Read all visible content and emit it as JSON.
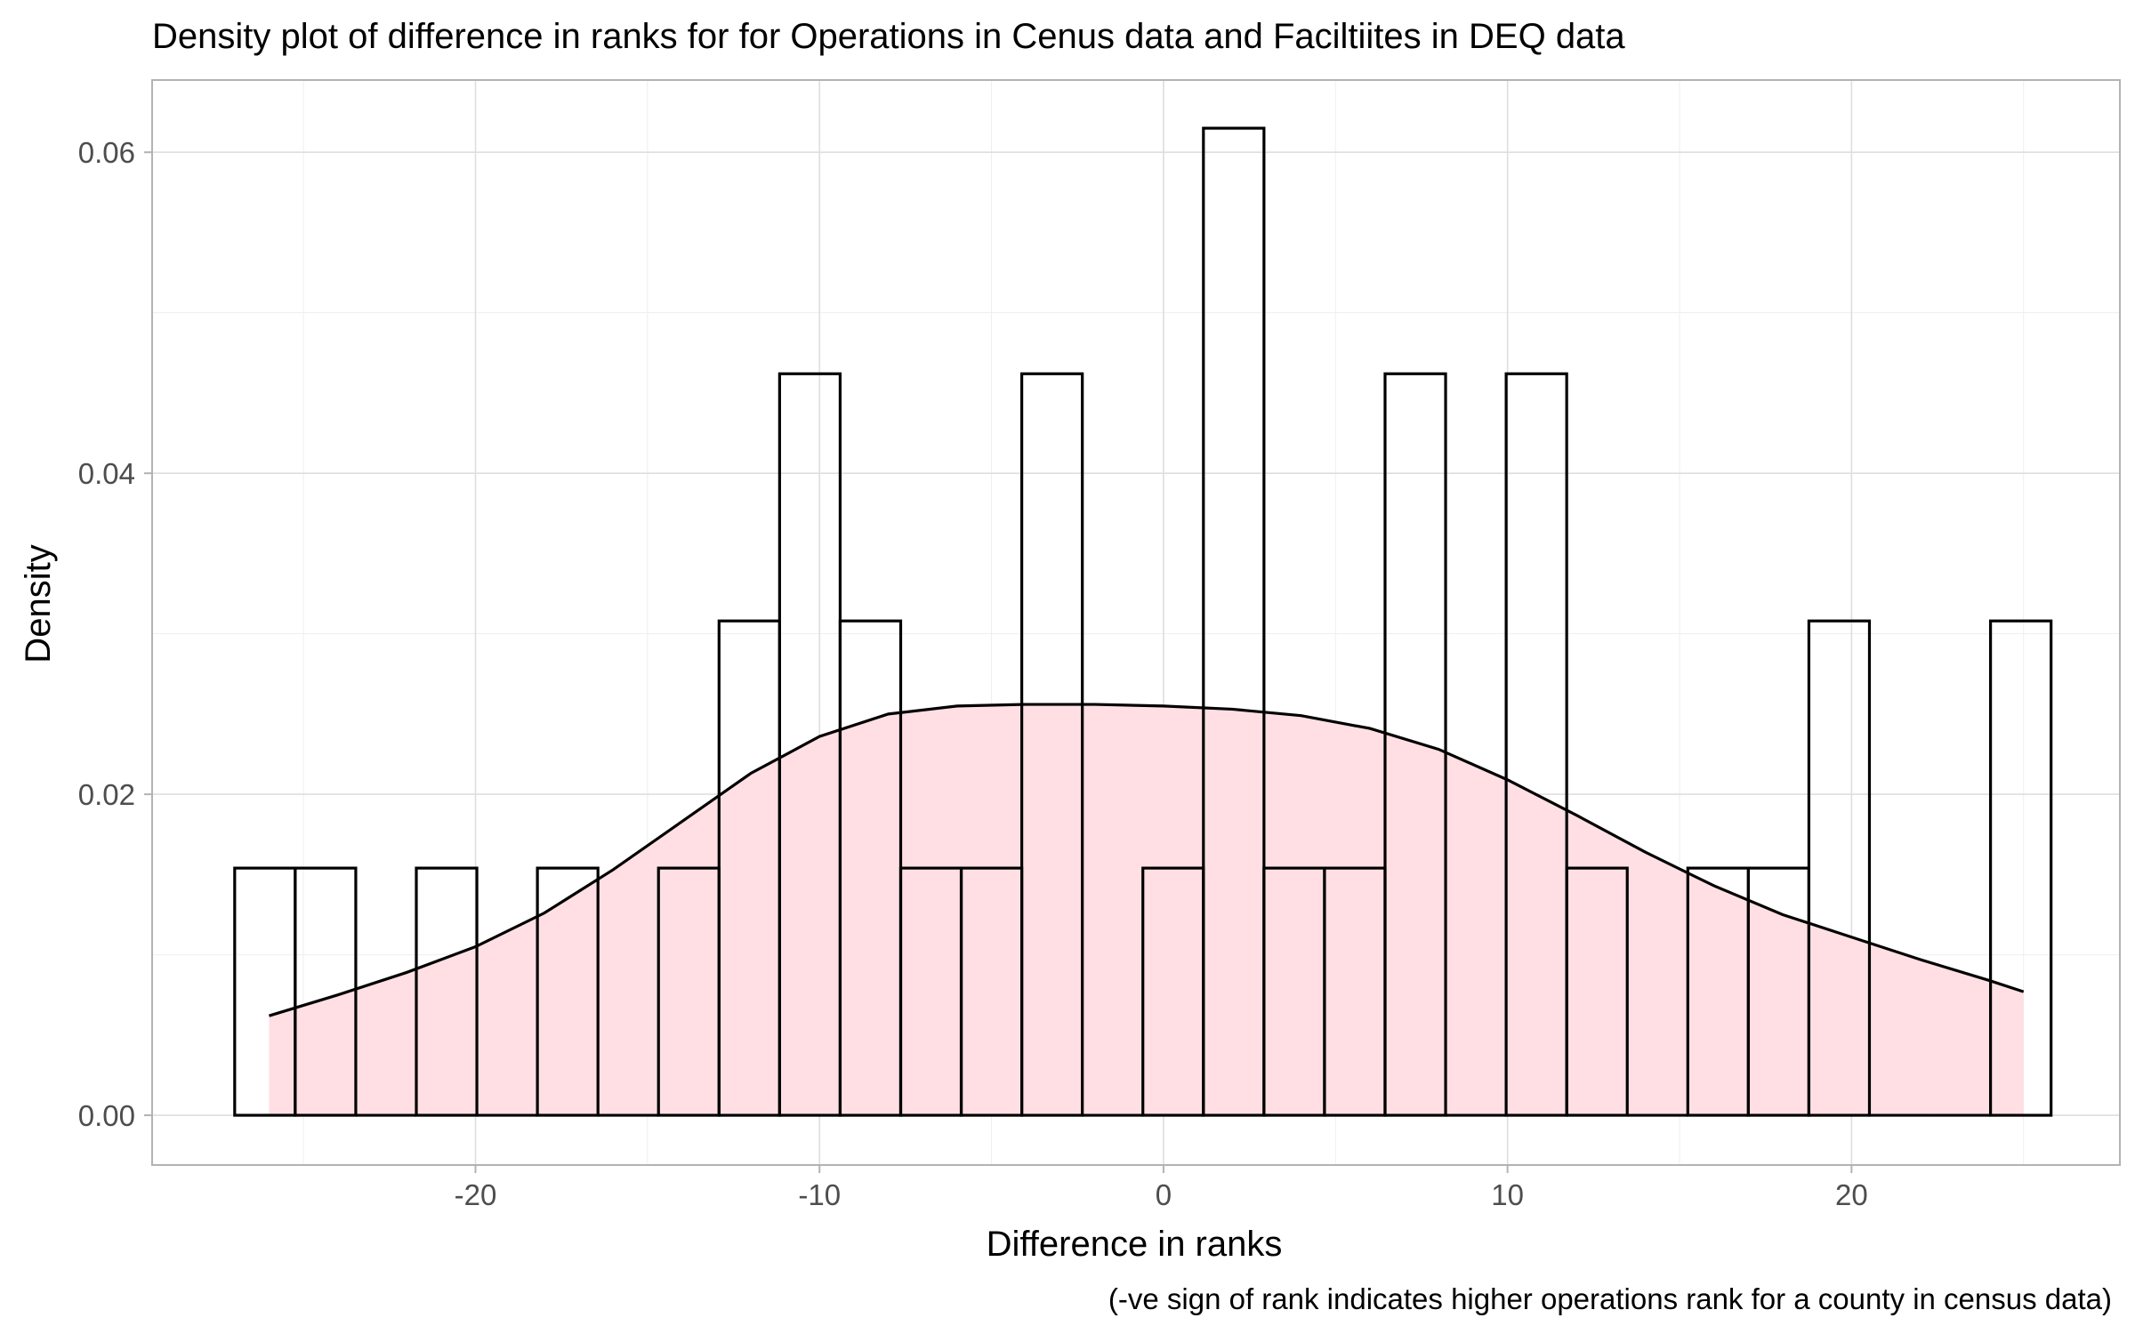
{
  "chart_data": {
    "type": "histogram",
    "title": "Density plot of difference in ranks for for Operations in Cenus data and Faciltiites in DEQ data",
    "xlabel": "Difference in ranks",
    "ylabel": "Density",
    "caption": "(-ve sign of rank indicates higher operations rank for a county in census data)",
    "xlim": [
      -29.4,
      27.8
    ],
    "ylim": [
      -0.0031,
      0.0645
    ],
    "x_ticks": [
      -20,
      -10,
      0,
      10,
      20
    ],
    "x_tick_labels": [
      "-20",
      "-10",
      "0",
      "10",
      "20"
    ],
    "y_ticks": [
      0,
      0.02,
      0.04,
      0.06
    ],
    "y_tick_labels": [
      "0.00",
      "0.02",
      "0.04",
      "0.06"
    ],
    "grid": true,
    "histogram": {
      "bin_edges": [
        -27.0,
        -25.24,
        -23.48,
        -21.72,
        -19.96,
        -18.2,
        -16.44,
        -14.68,
        -12.92,
        -11.16,
        -9.4,
        -7.64,
        -5.88,
        -4.12,
        -2.36,
        -0.6,
        1.16,
        2.92,
        4.68,
        6.44,
        8.2,
        9.96,
        11.72,
        13.48,
        15.24,
        17.0,
        18.76,
        20.52,
        22.28,
        24.04,
        25.8
      ],
      "density": [
        0.0154,
        0.0154,
        0,
        0.0154,
        0,
        0.0154,
        0,
        0.0154,
        0.0308,
        0.0462,
        0.0308,
        0.0154,
        0.0154,
        0.0462,
        0,
        0.0154,
        0.0615,
        0.0154,
        0.0154,
        0.0462,
        0,
        0.0462,
        0.0154,
        0,
        0.0154,
        0.0154,
        0.0308,
        0,
        0,
        0.0308
      ],
      "fill": "none",
      "outline": "#000000"
    },
    "density_curve": {
      "x": [
        -26,
        -24,
        -22,
        -20,
        -18,
        -16,
        -14,
        -12,
        -10,
        -8,
        -6,
        -4,
        -2,
        0,
        2,
        4,
        6,
        8,
        10,
        12,
        14,
        16,
        18,
        20,
        22,
        24,
        25
      ],
      "y": [
        0.0062,
        0.0075,
        0.0089,
        0.0105,
        0.0126,
        0.0153,
        0.0183,
        0.0213,
        0.0236,
        0.025,
        0.0255,
        0.0256,
        0.0256,
        0.0255,
        0.0253,
        0.0249,
        0.0241,
        0.0228,
        0.0209,
        0.0187,
        0.0164,
        0.0143,
        0.0125,
        0.0111,
        0.0097,
        0.0084,
        0.0077
      ],
      "fill": "#ffdfe3",
      "line_color": "#000000"
    }
  }
}
